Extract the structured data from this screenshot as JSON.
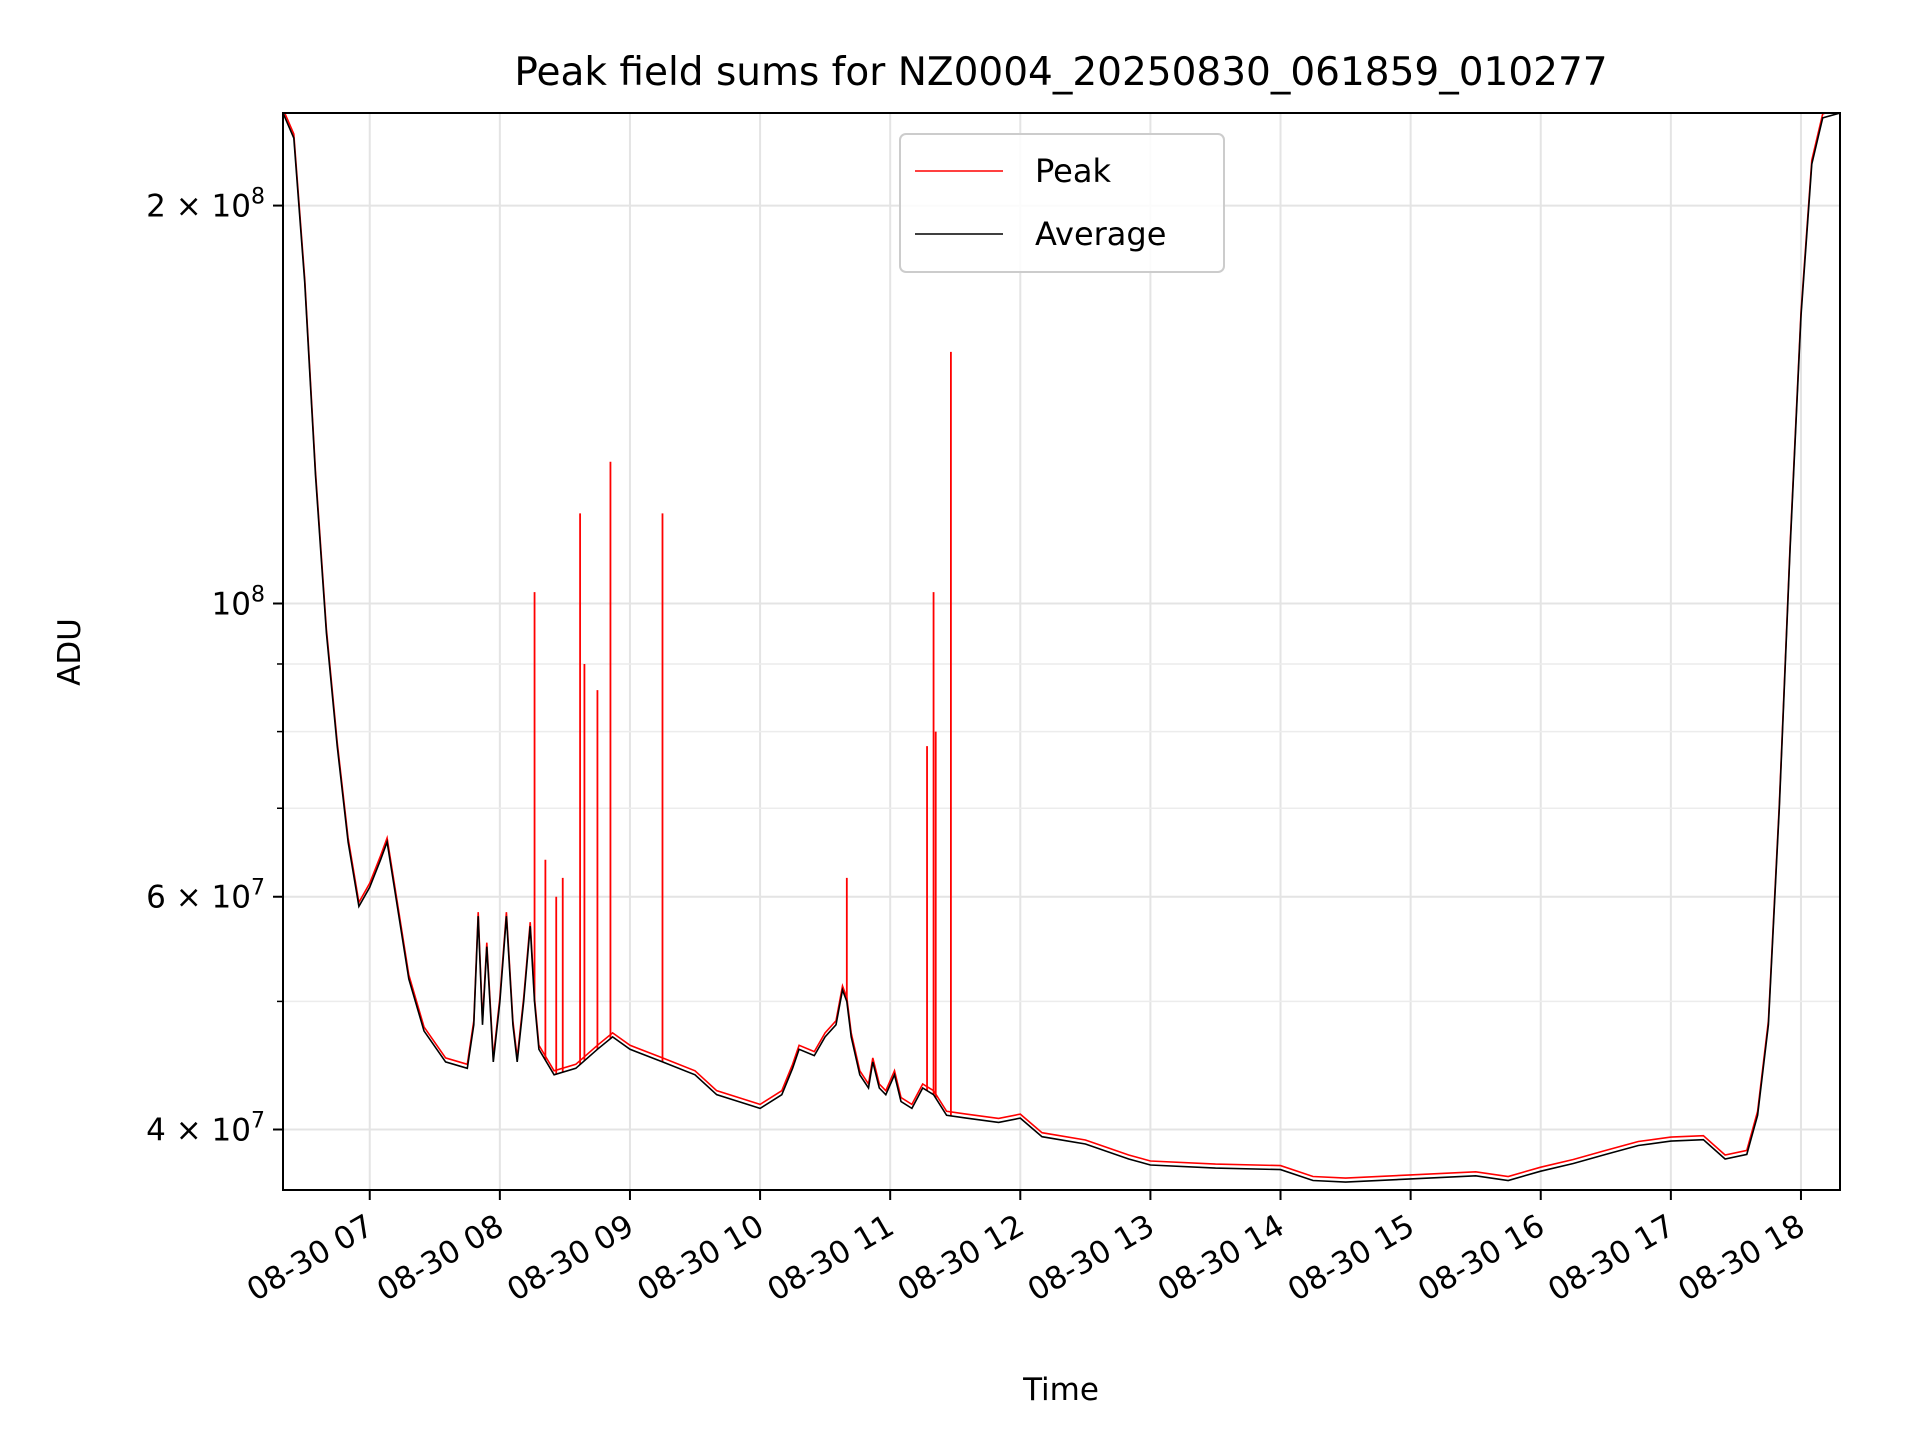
{
  "chart_data": {
    "type": "line",
    "title": "Peak field sums for NZ0004_20250830_061859_010277",
    "xlabel": "Time",
    "ylabel": "ADU",
    "yscale": "log",
    "ylim": [
      36000000,
      235000000
    ],
    "xlim": [
      "2025-08-30 06:20",
      "2025-08-30 18:18"
    ],
    "grid": true,
    "legend": "upper center",
    "x_ticks": [
      {
        "t": "2025-08-30 07:00",
        "label": "08-30 07"
      },
      {
        "t": "2025-08-30 08:00",
        "label": "08-30 08"
      },
      {
        "t": "2025-08-30 09:00",
        "label": "08-30 09"
      },
      {
        "t": "2025-08-30 10:00",
        "label": "08-30 10"
      },
      {
        "t": "2025-08-30 11:00",
        "label": "08-30 11"
      },
      {
        "t": "2025-08-30 12:00",
        "label": "08-30 12"
      },
      {
        "t": "2025-08-30 13:00",
        "label": "08-30 13"
      },
      {
        "t": "2025-08-30 14:00",
        "label": "08-30 14"
      },
      {
        "t": "2025-08-30 15:00",
        "label": "08-30 15"
      },
      {
        "t": "2025-08-30 16:00",
        "label": "08-30 16"
      },
      {
        "t": "2025-08-30 17:00",
        "label": "08-30 17"
      },
      {
        "t": "2025-08-30 18:00",
        "label": "08-30 18"
      }
    ],
    "y_ticks": [
      {
        "value": 40000000,
        "base": "4",
        "exp": "7"
      },
      {
        "value": 60000000,
        "base": "6",
        "exp": "7"
      },
      {
        "value": 100000000,
        "base": "",
        "exp": "8"
      },
      {
        "value": 200000000,
        "base": "2",
        "exp": "8"
      }
    ],
    "y_minor_ticks": [
      50000000,
      70000000,
      80000000,
      90000000
    ],
    "series": [
      {
        "name": "Average",
        "color": "#000000",
        "points": [
          [
            "2025-08-30 06:20",
            235000000
          ],
          [
            "2025-08-30 06:25",
            225000000
          ],
          [
            "2025-08-30 06:30",
            175000000
          ],
          [
            "2025-08-30 06:35",
            125000000
          ],
          [
            "2025-08-30 06:40",
            95000000
          ],
          [
            "2025-08-30 06:45",
            78000000
          ],
          [
            "2025-08-30 06:50",
            66000000
          ],
          [
            "2025-08-30 06:55",
            59000000
          ],
          [
            "2025-08-30 07:00",
            61000000
          ],
          [
            "2025-08-30 07:05",
            64000000
          ],
          [
            "2025-08-30 07:08",
            66000000
          ],
          [
            "2025-08-30 07:12",
            60000000
          ],
          [
            "2025-08-30 07:18",
            52000000
          ],
          [
            "2025-08-30 07:25",
            47500000
          ],
          [
            "2025-08-30 07:35",
            45000000
          ],
          [
            "2025-08-30 07:45",
            44500000
          ],
          [
            "2025-08-30 07:48",
            48000000
          ],
          [
            "2025-08-30 07:50",
            58000000
          ],
          [
            "2025-08-30 07:52",
            48000000
          ],
          [
            "2025-08-30 07:54",
            55000000
          ],
          [
            "2025-08-30 07:57",
            45000000
          ],
          [
            "2025-08-30 08:00",
            50000000
          ],
          [
            "2025-08-30 08:03",
            58000000
          ],
          [
            "2025-08-30 08:06",
            48000000
          ],
          [
            "2025-08-30 08:08",
            45000000
          ],
          [
            "2025-08-30 08:11",
            50000000
          ],
          [
            "2025-08-30 08:14",
            57000000
          ],
          [
            "2025-08-30 08:16",
            50000000
          ],
          [
            "2025-08-30 08:18",
            46000000
          ],
          [
            "2025-08-30 08:25",
            44000000
          ],
          [
            "2025-08-30 08:35",
            44500000
          ],
          [
            "2025-08-30 08:45",
            46000000
          ],
          [
            "2025-08-30 08:52",
            47000000
          ],
          [
            "2025-08-30 09:00",
            46000000
          ],
          [
            "2025-08-30 09:15",
            45000000
          ],
          [
            "2025-08-30 09:30",
            44000000
          ],
          [
            "2025-08-30 09:40",
            42500000
          ],
          [
            "2025-08-30 09:50",
            42000000
          ],
          [
            "2025-08-30 10:00",
            41500000
          ],
          [
            "2025-08-30 10:10",
            42500000
          ],
          [
            "2025-08-30 10:15",
            44500000
          ],
          [
            "2025-08-30 10:18",
            46000000
          ],
          [
            "2025-08-30 10:25",
            45500000
          ],
          [
            "2025-08-30 10:30",
            47000000
          ],
          [
            "2025-08-30 10:35",
            48000000
          ],
          [
            "2025-08-30 10:38",
            51000000
          ],
          [
            "2025-08-30 10:40",
            50000000
          ],
          [
            "2025-08-30 10:42",
            47000000
          ],
          [
            "2025-08-30 10:46",
            44000000
          ],
          [
            "2025-08-30 10:50",
            43000000
          ],
          [
            "2025-08-30 10:52",
            45000000
          ],
          [
            "2025-08-30 10:55",
            43000000
          ],
          [
            "2025-08-30 10:58",
            42500000
          ],
          [
            "2025-08-30 11:02",
            44000000
          ],
          [
            "2025-08-30 11:05",
            42000000
          ],
          [
            "2025-08-30 11:10",
            41500000
          ],
          [
            "2025-08-30 11:15",
            43000000
          ],
          [
            "2025-08-30 11:20",
            42500000
          ],
          [
            "2025-08-30 11:26",
            41000000
          ],
          [
            "2025-08-30 11:35",
            40800000
          ],
          [
            "2025-08-30 11:50",
            40500000
          ],
          [
            "2025-08-30 12:00",
            40800000
          ],
          [
            "2025-08-30 12:10",
            39500000
          ],
          [
            "2025-08-30 12:30",
            39000000
          ],
          [
            "2025-08-30 12:50",
            38000000
          ],
          [
            "2025-08-30 13:00",
            37600000
          ],
          [
            "2025-08-30 13:30",
            37400000
          ],
          [
            "2025-08-30 14:00",
            37300000
          ],
          [
            "2025-08-30 14:15",
            36600000
          ],
          [
            "2025-08-30 14:30",
            36500000
          ],
          [
            "2025-08-30 15:00",
            36700000
          ],
          [
            "2025-08-30 15:30",
            36900000
          ],
          [
            "2025-08-30 15:45",
            36600000
          ],
          [
            "2025-08-30 16:00",
            37200000
          ],
          [
            "2025-08-30 16:15",
            37700000
          ],
          [
            "2025-08-30 16:30",
            38300000
          ],
          [
            "2025-08-30 16:45",
            38900000
          ],
          [
            "2025-08-30 17:00",
            39200000
          ],
          [
            "2025-08-30 17:15",
            39300000
          ],
          [
            "2025-08-30 17:25",
            38000000
          ],
          [
            "2025-08-30 17:35",
            38300000
          ],
          [
            "2025-08-30 17:40",
            41000000
          ],
          [
            "2025-08-30 17:45",
            48000000
          ],
          [
            "2025-08-30 17:50",
            70000000
          ],
          [
            "2025-08-30 17:55",
            110000000
          ],
          [
            "2025-08-30 18:00",
            165000000
          ],
          [
            "2025-08-30 18:05",
            215000000
          ],
          [
            "2025-08-30 18:10",
            233000000
          ],
          [
            "2025-08-30 18:18",
            235000000
          ]
        ]
      },
      {
        "name": "Peak",
        "color": "#ff0000",
        "spikes": [
          [
            "2025-08-30 08:16",
            102000000
          ],
          [
            "2025-08-30 08:21",
            64000000
          ],
          [
            "2025-08-30 08:26",
            60000000
          ],
          [
            "2025-08-30 08:29",
            62000000
          ],
          [
            "2025-08-30 08:37",
            117000000
          ],
          [
            "2025-08-30 08:39",
            90000000
          ],
          [
            "2025-08-30 08:45",
            86000000
          ],
          [
            "2025-08-30 08:51",
            128000000
          ],
          [
            "2025-08-30 09:15",
            117000000
          ],
          [
            "2025-08-30 10:40",
            62000000
          ],
          [
            "2025-08-30 11:17",
            78000000
          ],
          [
            "2025-08-30 11:20",
            102000000
          ],
          [
            "2025-08-30 11:21",
            80000000
          ],
          [
            "2025-08-30 11:28",
            155000000
          ]
        ]
      }
    ]
  }
}
